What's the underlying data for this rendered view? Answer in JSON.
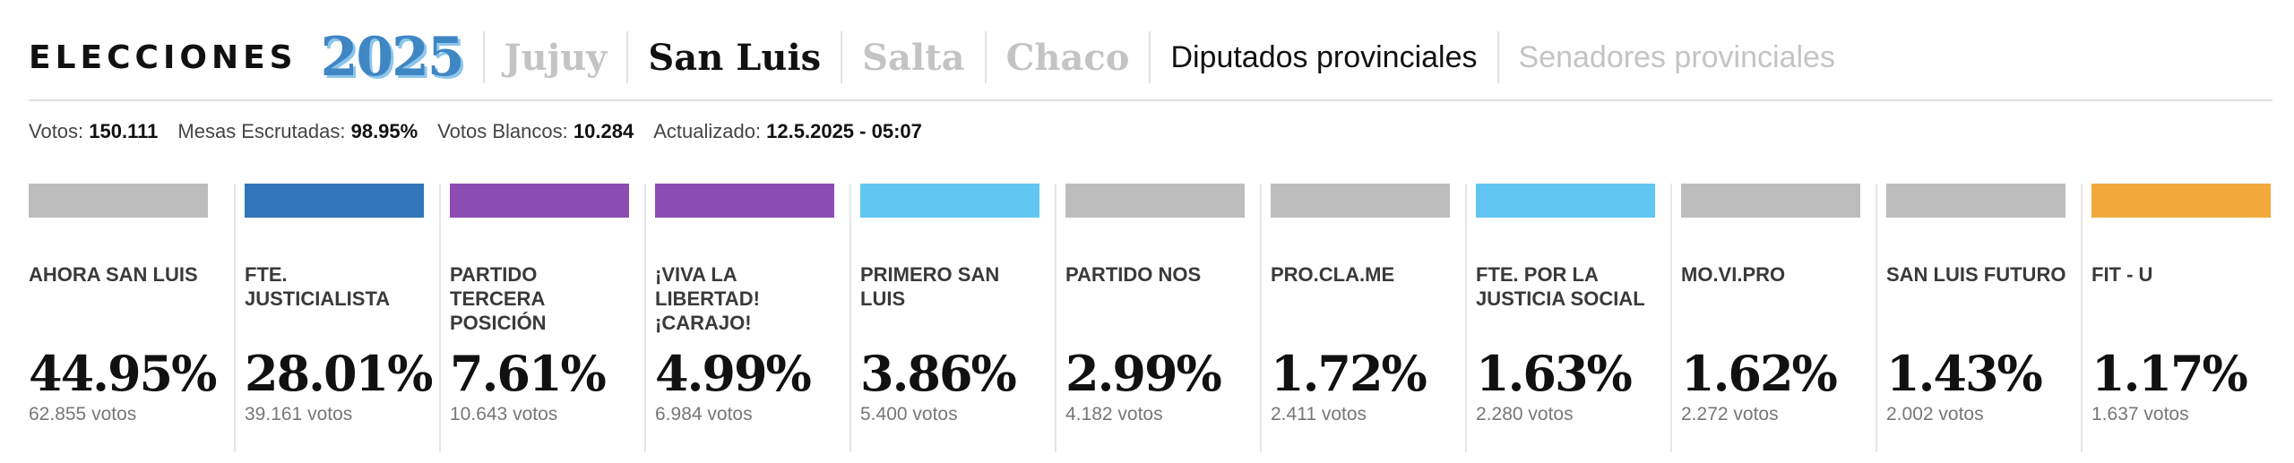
{
  "header": {
    "brand_word": "ELECCIONES",
    "brand_year": "2025",
    "provinces": [
      {
        "label": "Jujuy",
        "active": false
      },
      {
        "label": "San Luis",
        "active": true
      },
      {
        "label": "Salta",
        "active": false
      },
      {
        "label": "Chaco",
        "active": false
      }
    ],
    "chambers": [
      {
        "label": "Diputados provinciales",
        "active": true
      },
      {
        "label": "Senadores provinciales",
        "active": false
      }
    ]
  },
  "stats": {
    "votos_label": "Votos:",
    "votos_value": "150.111",
    "mesas_label": "Mesas Escrutadas:",
    "mesas_value": "98.95%",
    "blancos_label": "Votos Blancos:",
    "blancos_value": "10.284",
    "actualizado_label": "Actualizado:",
    "actualizado_value": "12.5.2025 - 05:07"
  },
  "parties": [
    {
      "name": "AHORA SAN LUIS",
      "pct": "44.95%",
      "votes": "62.855 votos",
      "color": "#bdbdbd"
    },
    {
      "name": "FTE. JUSTICIALISTA",
      "pct": "28.01%",
      "votes": "39.161 votos",
      "color": "#3275b8"
    },
    {
      "name": "PARTIDO TERCERA POSICIÓN",
      "pct": "7.61%",
      "votes": "10.643 votos",
      "color": "#8c4db3"
    },
    {
      "name": "¡VIVA LA LIBERTAD! ¡CARAJO!",
      "pct": "4.99%",
      "votes": "6.984 votos",
      "color": "#8c4db3"
    },
    {
      "name": "PRIMERO SAN LUIS",
      "pct": "3.86%",
      "votes": "5.400 votos",
      "color": "#62c6f2"
    },
    {
      "name": "PARTIDO NOS",
      "pct": "2.99%",
      "votes": "4.182 votos",
      "color": "#bdbdbd"
    },
    {
      "name": "PRO.CLA.ME",
      "pct": "1.72%",
      "votes": "2.411 votos",
      "color": "#bdbdbd"
    },
    {
      "name": "FTE. POR LA JUSTICIA SOCIAL",
      "pct": "1.63%",
      "votes": "2.280 votos",
      "color": "#62c6f2"
    },
    {
      "name": "MO.VI.PRO",
      "pct": "1.62%",
      "votes": "2.272 votos",
      "color": "#bdbdbd"
    },
    {
      "name": "SAN LUIS FUTURO",
      "pct": "1.43%",
      "votes": "2.002 votos",
      "color": "#bdbdbd"
    },
    {
      "name": "FIT - U",
      "pct": "1.17%",
      "votes": "1.637 votos",
      "color": "#f1a93d"
    }
  ]
}
